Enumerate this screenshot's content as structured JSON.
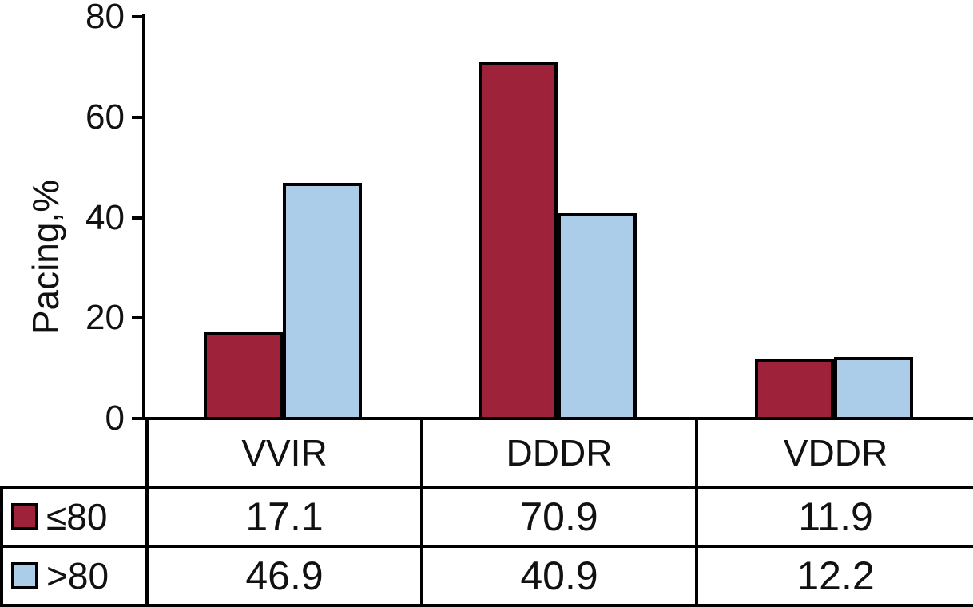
{
  "chart_data": {
    "type": "bar",
    "title": "",
    "xlabel": "",
    "ylabel": "Pacing,%",
    "categories": [
      "VVIR",
      "DDDR",
      "VDDR"
    ],
    "series": [
      {
        "name": "≤80",
        "color": "#9E2239",
        "values": [
          17.1,
          70.9,
          11.9
        ]
      },
      {
        "name": ">80",
        "color": "#ACCDEA",
        "values": [
          46.9,
          40.9,
          12.2
        ]
      }
    ],
    "ylim": [
      0,
      80
    ],
    "yticks": [
      0,
      20,
      40,
      60,
      80
    ],
    "grid": false,
    "legend_position": "table-left",
    "bar_border_color": "#000000",
    "axis_color": "#000000"
  },
  "table": {
    "column_headers": [
      "VVIR",
      "DDDR",
      "VDDR"
    ],
    "rows": [
      {
        "label": "≤80",
        "swatch_color": "#9E2239",
        "values": [
          "17.1",
          "70.9",
          "11.9"
        ]
      },
      {
        "label": ">80",
        "swatch_color": "#ACCDEA",
        "values": [
          "46.9",
          "40.9",
          "12.2"
        ]
      }
    ]
  }
}
